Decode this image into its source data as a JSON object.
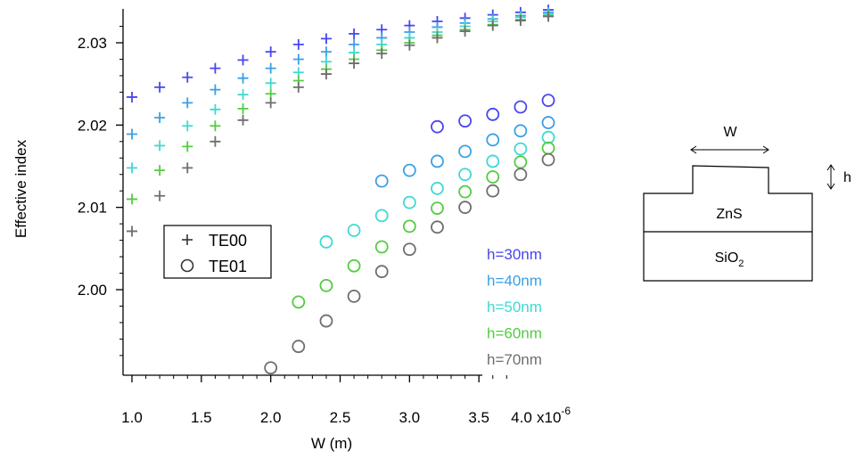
{
  "chart_data": {
    "type": "scatter",
    "ylabel": "Effective index",
    "xlabel": "W (m)",
    "x_ticks": [
      "1.0",
      "1.5",
      "2.0",
      "2.5",
      "3.0",
      "3.5",
      "4.0"
    ],
    "x_multiplier": "x10",
    "x_exponent": "-6",
    "y_ticks": [
      "2.00",
      "2.01",
      "2.02",
      "2.03"
    ],
    "xlim": [
      9.7e-07,
      4.2e-06
    ],
    "ylim": [
      1.989,
      2.0345
    ],
    "legend": {
      "placement": "left-middle",
      "entries": [
        {
          "marker": "+",
          "label": "TE00"
        },
        {
          "marker": "o",
          "label": "TE01"
        }
      ]
    },
    "series_labels": [
      "h=30nm",
      "h=40nm",
      "h=50nm",
      "h=60nm",
      "h=70nm"
    ],
    "series": [
      {
        "name": "h=30nm",
        "color": "#4747ef",
        "TE00": {
          "x": [
            1e-06,
            1.2e-06,
            1.4e-06,
            1.6e-06,
            1.8e-06,
            2e-06,
            2.2e-06,
            2.4e-06,
            2.6e-06,
            2.8e-06,
            3e-06,
            3.2e-06,
            3.4e-06,
            3.6e-06,
            3.8e-06,
            4e-06
          ],
          "y": [
            2.0234,
            2.0246,
            2.0258,
            2.0269,
            2.0279,
            2.0289,
            2.0298,
            2.0305,
            2.0311,
            2.0316,
            2.0321,
            2.0326,
            2.033,
            2.0334,
            2.0337,
            2.034
          ]
        },
        "TE01": {
          "x": [
            3.2e-06,
            3.4e-06,
            3.6e-06,
            3.8e-06,
            4e-06
          ],
          "y": [
            2.0198,
            2.0205,
            2.0213,
            2.0222,
            2.023
          ]
        }
      },
      {
        "name": "h=40nm",
        "color": "#3aa0e6",
        "TE00": {
          "x": [
            1e-06,
            1.2e-06,
            1.4e-06,
            1.6e-06,
            1.8e-06,
            2e-06,
            2.2e-06,
            2.4e-06,
            2.6e-06,
            2.8e-06,
            3e-06,
            3.2e-06,
            3.4e-06,
            3.6e-06,
            3.8e-06,
            4e-06
          ],
          "y": [
            2.0189,
            2.0209,
            2.0227,
            2.0243,
            2.0257,
            2.0269,
            2.028,
            2.0289,
            2.0298,
            2.0306,
            2.0313,
            2.0319,
            2.0324,
            2.0329,
            2.0333,
            2.0337
          ]
        },
        "TE01": {
          "x": [
            2.8e-06,
            3e-06,
            3.2e-06,
            3.4e-06,
            3.6e-06,
            3.8e-06,
            4e-06
          ],
          "y": [
            2.0132,
            2.0145,
            2.0156,
            2.0168,
            2.0182,
            2.0193,
            2.0203
          ]
        }
      },
      {
        "name": "h=50nm",
        "color": "#3fd8d4",
        "TE00": {
          "x": [
            1e-06,
            1.2e-06,
            1.4e-06,
            1.6e-06,
            1.8e-06,
            2e-06,
            2.2e-06,
            2.4e-06,
            2.6e-06,
            2.8e-06,
            3e-06,
            3.2e-06,
            3.4e-06,
            3.6e-06,
            3.8e-06,
            4e-06
          ],
          "y": [
            2.0148,
            2.0175,
            2.0199,
            2.0219,
            2.0237,
            2.0251,
            2.0264,
            2.0277,
            2.0288,
            2.0298,
            2.0306,
            2.0313,
            2.032,
            2.0326,
            2.0331,
            2.0335
          ]
        },
        "TE01": {
          "x": [
            2.4e-06,
            2.6e-06,
            2.8e-06,
            3e-06,
            3.2e-06,
            3.4e-06,
            3.6e-06,
            3.8e-06,
            4e-06
          ],
          "y": [
            2.0058,
            2.0072,
            2.009,
            2.0106,
            2.0123,
            2.014,
            2.0156,
            2.0171,
            2.0185
          ]
        }
      },
      {
        "name": "h=60nm",
        "color": "#52cc40",
        "TE00": {
          "x": [
            1e-06,
            1.2e-06,
            1.4e-06,
            1.6e-06,
            1.8e-06,
            2e-06,
            2.2e-06,
            2.4e-06,
            2.6e-06,
            2.8e-06,
            3e-06,
            3.2e-06,
            3.4e-06,
            3.6e-06,
            3.8e-06,
            4e-06
          ],
          "y": [
            2.011,
            2.0145,
            2.0174,
            2.0199,
            2.022,
            2.0238,
            2.0254,
            2.0268,
            2.028,
            2.0291,
            2.03,
            2.0309,
            2.0316,
            2.0322,
            2.0328,
            2.0333
          ]
        },
        "TE01": {
          "x": [
            2.2e-06,
            2.4e-06,
            2.6e-06,
            2.8e-06,
            3e-06,
            3.2e-06,
            3.4e-06,
            3.6e-06,
            3.8e-06,
            4e-06
          ],
          "y": [
            1.9985,
            2.0005,
            2.0029,
            2.0052,
            2.0077,
            2.0099,
            2.0119,
            2.0137,
            2.0155,
            2.0172
          ]
        }
      },
      {
        "name": "h=70nm",
        "color": "#6e6e6e",
        "TE00": {
          "x": [
            1e-06,
            1.2e-06,
            1.4e-06,
            1.6e-06,
            1.8e-06,
            2e-06,
            2.2e-06,
            2.4e-06,
            2.6e-06,
            2.8e-06,
            3e-06,
            3.2e-06,
            3.4e-06,
            3.6e-06,
            3.8e-06,
            4e-06
          ],
          "y": [
            2.0071,
            2.0114,
            2.0148,
            2.018,
            2.0206,
            2.0227,
            2.0246,
            2.0262,
            2.0275,
            2.0287,
            2.0297,
            2.0306,
            2.0314,
            2.0321,
            2.0327,
            2.0332
          ]
        },
        "TE01": {
          "x": [
            2e-06,
            2.2e-06,
            2.4e-06,
            2.6e-06,
            2.8e-06,
            3e-06,
            3.2e-06,
            3.4e-06,
            3.6e-06,
            3.8e-06,
            4e-06
          ],
          "y": [
            1.9905,
            1.9931,
            1.9962,
            1.9992,
            2.0022,
            2.0049,
            2.0076,
            2.01,
            2.012,
            2.014,
            2.0158
          ]
        }
      }
    ]
  },
  "inset": {
    "width_label": "W",
    "height_label": "h",
    "core_label": "ZnS",
    "substrate_label": "SiO",
    "substrate_subscript": "2"
  }
}
